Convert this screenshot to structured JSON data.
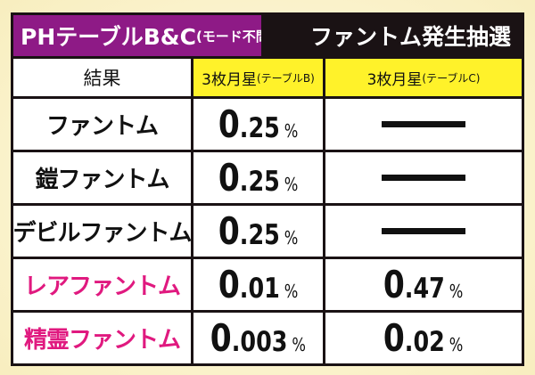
{
  "title": {
    "main": "PHテーブルB&C",
    "sub": "(モード不問)",
    "right": "ファントム発生抽選"
  },
  "headers": {
    "result": "結果",
    "colB_main": "3枚月星",
    "colB_sub": "(テーブルB)",
    "colC_main": "3枚月星",
    "colC_sub": "(テーブルC)"
  },
  "rows": [
    {
      "label": "ファントム",
      "b_int": "0",
      "b_dec": ".25",
      "c_int": null,
      "c_dec": null
    },
    {
      "label": "鎧ファントム",
      "b_int": "0",
      "b_dec": ".25",
      "c_int": null,
      "c_dec": null
    },
    {
      "label": "デビルファントム",
      "b_int": "0",
      "b_dec": ".25",
      "c_int": null,
      "c_dec": null
    },
    {
      "label": "レアファントム",
      "b_int": "0",
      "b_dec": ".01",
      "c_int": "0",
      "c_dec": ".47"
    },
    {
      "label": "精霊ファントム",
      "b_int": "0",
      "b_dec": ".003",
      "c_int": "0",
      "c_dec": ".02"
    }
  ],
  "unit": "%",
  "colors": {
    "purple": "#8e1a86",
    "yellow": "#fff22a",
    "pink": "#e0197f"
  }
}
